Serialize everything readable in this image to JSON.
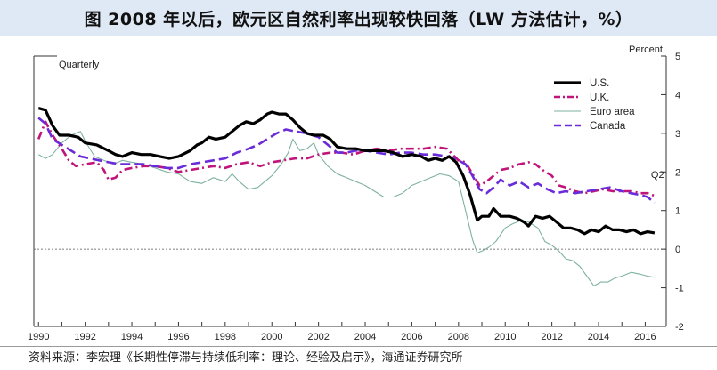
{
  "title": "图  2008 年以后，欧元区自然利率出现较快回落（LW 方法估计，%）",
  "source": "资料来源：李宏理《长期性停滞与持续低利率：理论、经验及启示》，海通证券研究所",
  "chart_data": {
    "type": "line",
    "inner_left_label": "Quarterly",
    "y_axis_label": "Percent",
    "end_annotation": "Q2",
    "ylim": [
      -2,
      5
    ],
    "yticks": [
      -2,
      -1,
      0,
      1,
      2,
      3,
      4,
      5
    ],
    "xlim": [
      1989.8,
      2016.9
    ],
    "xticks": [
      1990,
      1991,
      1992,
      1993,
      1994,
      1995,
      1996,
      1997,
      1998,
      1999,
      2000,
      2001,
      2002,
      2003,
      2004,
      2005,
      2006,
      2007,
      2008,
      2009,
      2010,
      2011,
      2012,
      2013,
      2014,
      2015,
      2016
    ],
    "xtick_labels": [
      "1990",
      "1992",
      "1994",
      "1996",
      "1998",
      "2000",
      "2002",
      "2004",
      "2006",
      "2008",
      "2010",
      "2012",
      "2014",
      "2016"
    ],
    "zero_line": true,
    "legend_position": "top-right",
    "series": [
      {
        "name": "U.S.",
        "color": "#000000",
        "style": "solid",
        "points": [
          [
            1990.0,
            3.65
          ],
          [
            1990.3,
            3.6
          ],
          [
            1990.6,
            3.2
          ],
          [
            1990.9,
            2.95
          ],
          [
            1991.3,
            2.95
          ],
          [
            1991.7,
            2.9
          ],
          [
            1992.0,
            2.75
          ],
          [
            1992.5,
            2.7
          ],
          [
            1993.0,
            2.55
          ],
          [
            1993.3,
            2.45
          ],
          [
            1993.6,
            2.4
          ],
          [
            1994.0,
            2.5
          ],
          [
            1994.4,
            2.45
          ],
          [
            1994.8,
            2.45
          ],
          [
            1995.2,
            2.4
          ],
          [
            1995.6,
            2.35
          ],
          [
            1996.0,
            2.4
          ],
          [
            1996.5,
            2.55
          ],
          [
            1996.8,
            2.7
          ],
          [
            1997.0,
            2.75
          ],
          [
            1997.3,
            2.9
          ],
          [
            1997.6,
            2.85
          ],
          [
            1998.0,
            2.9
          ],
          [
            1998.3,
            3.05
          ],
          [
            1998.6,
            3.2
          ],
          [
            1998.9,
            3.3
          ],
          [
            1999.2,
            3.25
          ],
          [
            1999.5,
            3.35
          ],
          [
            1999.8,
            3.5
          ],
          [
            2000.0,
            3.55
          ],
          [
            2000.3,
            3.5
          ],
          [
            2000.6,
            3.5
          ],
          [
            2000.9,
            3.35
          ],
          [
            2001.2,
            3.15
          ],
          [
            2001.5,
            3.0
          ],
          [
            2001.8,
            2.95
          ],
          [
            2002.2,
            2.95
          ],
          [
            2002.5,
            2.85
          ],
          [
            2002.8,
            2.65
          ],
          [
            2003.2,
            2.6
          ],
          [
            2003.6,
            2.6
          ],
          [
            2004.0,
            2.55
          ],
          [
            2004.4,
            2.55
          ],
          [
            2004.8,
            2.55
          ],
          [
            2005.2,
            2.5
          ],
          [
            2005.6,
            2.4
          ],
          [
            2006.0,
            2.45
          ],
          [
            2006.4,
            2.4
          ],
          [
            2006.7,
            2.3
          ],
          [
            2007.0,
            2.35
          ],
          [
            2007.3,
            2.3
          ],
          [
            2007.6,
            2.4
          ],
          [
            2007.9,
            2.25
          ],
          [
            2008.2,
            1.9
          ],
          [
            2008.5,
            1.4
          ],
          [
            2008.8,
            0.75
          ],
          [
            2009.0,
            0.85
          ],
          [
            2009.3,
            0.85
          ],
          [
            2009.5,
            1.05
          ],
          [
            2009.8,
            0.85
          ],
          [
            2010.2,
            0.85
          ],
          [
            2010.5,
            0.8
          ],
          [
            2010.8,
            0.7
          ],
          [
            2011.0,
            0.6
          ],
          [
            2011.3,
            0.85
          ],
          [
            2011.6,
            0.8
          ],
          [
            2011.9,
            0.85
          ],
          [
            2012.2,
            0.7
          ],
          [
            2012.5,
            0.55
          ],
          [
            2012.8,
            0.55
          ],
          [
            2013.1,
            0.5
          ],
          [
            2013.4,
            0.4
          ],
          [
            2013.7,
            0.5
          ],
          [
            2014.0,
            0.45
          ],
          [
            2014.3,
            0.6
          ],
          [
            2014.6,
            0.5
          ],
          [
            2014.9,
            0.5
          ],
          [
            2015.2,
            0.45
          ],
          [
            2015.5,
            0.5
          ],
          [
            2015.8,
            0.4
          ],
          [
            2016.1,
            0.45
          ],
          [
            2016.4,
            0.42
          ]
        ]
      },
      {
        "name": "U.K.",
        "color": "#c0147a",
        "style": "dashdot",
        "points": [
          [
            1990.0,
            2.85
          ],
          [
            1990.3,
            3.3
          ],
          [
            1990.6,
            2.95
          ],
          [
            1991.0,
            2.6
          ],
          [
            1991.3,
            2.3
          ],
          [
            1991.6,
            2.15
          ],
          [
            1992.0,
            2.2
          ],
          [
            1992.5,
            2.25
          ],
          [
            1992.8,
            2.05
          ],
          [
            1993.0,
            1.8
          ],
          [
            1993.3,
            1.85
          ],
          [
            1993.6,
            2.05
          ],
          [
            1994.0,
            2.1
          ],
          [
            1994.5,
            2.15
          ],
          [
            1995.0,
            2.15
          ],
          [
            1995.5,
            2.1
          ],
          [
            1996.0,
            2.0
          ],
          [
            1996.5,
            2.05
          ],
          [
            1997.0,
            2.1
          ],
          [
            1997.5,
            2.15
          ],
          [
            1998.0,
            2.1
          ],
          [
            1998.5,
            2.2
          ],
          [
            1999.0,
            2.25
          ],
          [
            1999.5,
            2.15
          ],
          [
            2000.0,
            2.25
          ],
          [
            2000.5,
            2.3
          ],
          [
            2001.0,
            2.35
          ],
          [
            2001.5,
            2.35
          ],
          [
            2002.0,
            2.45
          ],
          [
            2002.5,
            2.5
          ],
          [
            2003.0,
            2.5
          ],
          [
            2003.5,
            2.45
          ],
          [
            2004.0,
            2.55
          ],
          [
            2004.5,
            2.6
          ],
          [
            2005.0,
            2.55
          ],
          [
            2005.5,
            2.6
          ],
          [
            2006.0,
            2.6
          ],
          [
            2006.5,
            2.6
          ],
          [
            2007.0,
            2.65
          ],
          [
            2007.5,
            2.6
          ],
          [
            2008.0,
            2.3
          ],
          [
            2008.3,
            2.25
          ],
          [
            2008.6,
            1.95
          ],
          [
            2008.9,
            1.65
          ],
          [
            2009.2,
            1.75
          ],
          [
            2009.5,
            1.9
          ],
          [
            2009.8,
            2.05
          ],
          [
            2010.2,
            2.1
          ],
          [
            2010.6,
            2.2
          ],
          [
            2011.0,
            2.25
          ],
          [
            2011.3,
            2.2
          ],
          [
            2011.6,
            2.05
          ],
          [
            2012.0,
            1.9
          ],
          [
            2012.3,
            1.65
          ],
          [
            2012.6,
            1.6
          ],
          [
            2013.0,
            1.5
          ],
          [
            2013.4,
            1.45
          ],
          [
            2013.8,
            1.5
          ],
          [
            2014.2,
            1.55
          ],
          [
            2014.6,
            1.5
          ],
          [
            2015.0,
            1.5
          ],
          [
            2015.4,
            1.5
          ],
          [
            2015.8,
            1.45
          ],
          [
            2016.1,
            1.45
          ],
          [
            2016.4,
            1.38
          ]
        ]
      },
      {
        "name": "Euro area",
        "color": "#7fb2a0",
        "style": "solid-thin",
        "points": [
          [
            1990.0,
            2.45
          ],
          [
            1990.3,
            2.35
          ],
          [
            1990.6,
            2.45
          ],
          [
            1991.0,
            2.75
          ],
          [
            1991.4,
            2.95
          ],
          [
            1991.8,
            3.05
          ],
          [
            1992.0,
            2.8
          ],
          [
            1992.4,
            2.4
          ],
          [
            1992.8,
            2.3
          ],
          [
            1993.2,
            2.2
          ],
          [
            1993.6,
            2.3
          ],
          [
            1994.0,
            2.25
          ],
          [
            1994.5,
            2.2
          ],
          [
            1995.0,
            2.1
          ],
          [
            1995.5,
            2.0
          ],
          [
            1996.0,
            1.95
          ],
          [
            1996.5,
            1.75
          ],
          [
            1997.0,
            1.7
          ],
          [
            1997.5,
            1.85
          ],
          [
            1998.0,
            1.75
          ],
          [
            1998.3,
            1.95
          ],
          [
            1998.6,
            1.75
          ],
          [
            1999.0,
            1.55
          ],
          [
            1999.4,
            1.6
          ],
          [
            1999.7,
            1.75
          ],
          [
            2000.0,
            1.9
          ],
          [
            2000.4,
            2.2
          ],
          [
            2000.7,
            2.5
          ],
          [
            2000.9,
            2.85
          ],
          [
            2001.2,
            2.55
          ],
          [
            2001.5,
            2.6
          ],
          [
            2001.8,
            2.75
          ],
          [
            2002.0,
            2.45
          ],
          [
            2002.4,
            2.15
          ],
          [
            2002.8,
            1.95
          ],
          [
            2003.2,
            1.85
          ],
          [
            2003.6,
            1.75
          ],
          [
            2004.0,
            1.65
          ],
          [
            2004.4,
            1.5
          ],
          [
            2004.8,
            1.35
          ],
          [
            2005.2,
            1.35
          ],
          [
            2005.6,
            1.45
          ],
          [
            2006.0,
            1.65
          ],
          [
            2006.4,
            1.75
          ],
          [
            2006.8,
            1.85
          ],
          [
            2007.2,
            1.95
          ],
          [
            2007.6,
            1.9
          ],
          [
            2008.0,
            1.75
          ],
          [
            2008.3,
            1.0
          ],
          [
            2008.6,
            0.25
          ],
          [
            2008.8,
            -0.1
          ],
          [
            2009.0,
            -0.05
          ],
          [
            2009.3,
            0.05
          ],
          [
            2009.6,
            0.2
          ],
          [
            2010.0,
            0.55
          ],
          [
            2010.3,
            0.65
          ],
          [
            2010.7,
            0.75
          ],
          [
            2011.0,
            0.7
          ],
          [
            2011.4,
            0.55
          ],
          [
            2011.7,
            0.2
          ],
          [
            2012.0,
            0.1
          ],
          [
            2012.3,
            -0.05
          ],
          [
            2012.6,
            -0.25
          ],
          [
            2012.9,
            -0.3
          ],
          [
            2013.2,
            -0.45
          ],
          [
            2013.5,
            -0.7
          ],
          [
            2013.8,
            -0.95
          ],
          [
            2014.1,
            -0.85
          ],
          [
            2014.4,
            -0.85
          ],
          [
            2014.7,
            -0.75
          ],
          [
            2015.0,
            -0.7
          ],
          [
            2015.4,
            -0.6
          ],
          [
            2015.8,
            -0.65
          ],
          [
            2016.1,
            -0.7
          ],
          [
            2016.4,
            -0.73
          ]
        ]
      },
      {
        "name": "Canada",
        "color": "#6a2bd9",
        "style": "dashed",
        "points": [
          [
            1990.0,
            3.4
          ],
          [
            1990.3,
            3.25
          ],
          [
            1990.6,
            2.85
          ],
          [
            1991.0,
            2.7
          ],
          [
            1991.4,
            2.55
          ],
          [
            1991.8,
            2.4
          ],
          [
            1992.2,
            2.35
          ],
          [
            1992.6,
            2.3
          ],
          [
            1993.0,
            2.25
          ],
          [
            1993.5,
            2.2
          ],
          [
            1994.0,
            2.2
          ],
          [
            1994.5,
            2.2
          ],
          [
            1995.0,
            2.15
          ],
          [
            1995.5,
            2.1
          ],
          [
            1996.0,
            2.1
          ],
          [
            1996.5,
            2.2
          ],
          [
            1997.0,
            2.25
          ],
          [
            1997.5,
            2.3
          ],
          [
            1998.0,
            2.35
          ],
          [
            1998.5,
            2.5
          ],
          [
            1999.0,
            2.6
          ],
          [
            1999.4,
            2.7
          ],
          [
            1999.8,
            2.85
          ],
          [
            2000.2,
            3.0
          ],
          [
            2000.6,
            3.1
          ],
          [
            2001.0,
            3.05
          ],
          [
            2001.5,
            3.0
          ],
          [
            2002.0,
            2.9
          ],
          [
            2002.4,
            2.7
          ],
          [
            2002.8,
            2.5
          ],
          [
            2003.2,
            2.5
          ],
          [
            2003.6,
            2.55
          ],
          [
            2004.0,
            2.55
          ],
          [
            2004.5,
            2.5
          ],
          [
            2005.0,
            2.45
          ],
          [
            2005.5,
            2.5
          ],
          [
            2006.0,
            2.5
          ],
          [
            2006.5,
            2.45
          ],
          [
            2007.0,
            2.45
          ],
          [
            2007.5,
            2.4
          ],
          [
            2008.0,
            2.3
          ],
          [
            2008.3,
            2.2
          ],
          [
            2008.6,
            1.9
          ],
          [
            2008.9,
            1.55
          ],
          [
            2009.2,
            1.45
          ],
          [
            2009.5,
            1.6
          ],
          [
            2009.8,
            1.8
          ],
          [
            2010.2,
            1.65
          ],
          [
            2010.6,
            1.75
          ],
          [
            2011.0,
            1.6
          ],
          [
            2011.4,
            1.7
          ],
          [
            2011.8,
            1.55
          ],
          [
            2012.2,
            1.45
          ],
          [
            2012.6,
            1.5
          ],
          [
            2013.0,
            1.45
          ],
          [
            2013.5,
            1.5
          ],
          [
            2014.0,
            1.55
          ],
          [
            2014.5,
            1.6
          ],
          [
            2015.0,
            1.5
          ],
          [
            2015.4,
            1.45
          ],
          [
            2015.8,
            1.4
          ],
          [
            2016.1,
            1.35
          ],
          [
            2016.4,
            1.2
          ]
        ]
      }
    ]
  }
}
